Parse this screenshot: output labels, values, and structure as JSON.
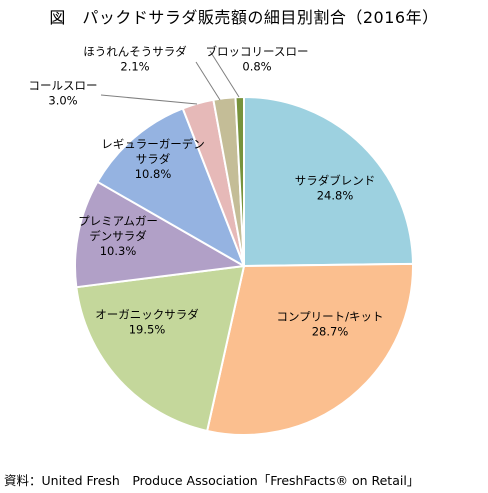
{
  "chart_data": {
    "type": "pie",
    "title": "図　パックドサラダ販売額の細目別割合（2016年）",
    "start_angle_deg": 0,
    "direction": "clockwise",
    "slices": [
      {
        "name": "サラダブレンド",
        "label_lines": [
          "サラダブレンド"
        ],
        "value": 24.8,
        "value_label": "24.8%",
        "color": "#9dd1e0",
        "label_position": "inside"
      },
      {
        "name": "コンプリート/キット",
        "label_lines": [
          "コンプリート/キット"
        ],
        "value": 28.7,
        "value_label": "28.7%",
        "color": "#fbbf8f",
        "label_position": "inside"
      },
      {
        "name": "オーガニックサラダ",
        "label_lines": [
          "オーガニックサラダ"
        ],
        "value": 19.5,
        "value_label": "19.5%",
        "color": "#c4d79b",
        "label_position": "inside"
      },
      {
        "name": "プレミアムガーデンサラダ",
        "label_lines": [
          "プレミアムガー",
          "デンサラダ"
        ],
        "value": 10.3,
        "value_label": "10.3%",
        "color": "#b1a0c7",
        "label_position": "inside"
      },
      {
        "name": "レギュラーガーデンサラダ",
        "label_lines": [
          "レギュラーガーデン",
          "サラダ"
        ],
        "value": 10.8,
        "value_label": "10.8%",
        "color": "#95b3e1",
        "label_position": "inside"
      },
      {
        "name": "コールスロー",
        "label_lines": [
          "コールスロー"
        ],
        "value": 3.0,
        "value_label": "3.0%",
        "color": "#e6b9b8",
        "label_position": "outside"
      },
      {
        "name": "ほうれんそうサラダ",
        "label_lines": [
          "ほうれんそうサラダ"
        ],
        "value": 2.1,
        "value_label": "2.1%",
        "color": "#c4bd97",
        "label_position": "outside"
      },
      {
        "name": "ブロッコリースロー",
        "label_lines": [
          "ブロッコリースロー"
        ],
        "value": 0.8,
        "value_label": "0.8%",
        "color": "#77933c",
        "label_position": "outside"
      }
    ],
    "legend": "none"
  },
  "source_note": "資料：United Fresh　Produce Association「FreshFacts® on Retail」"
}
